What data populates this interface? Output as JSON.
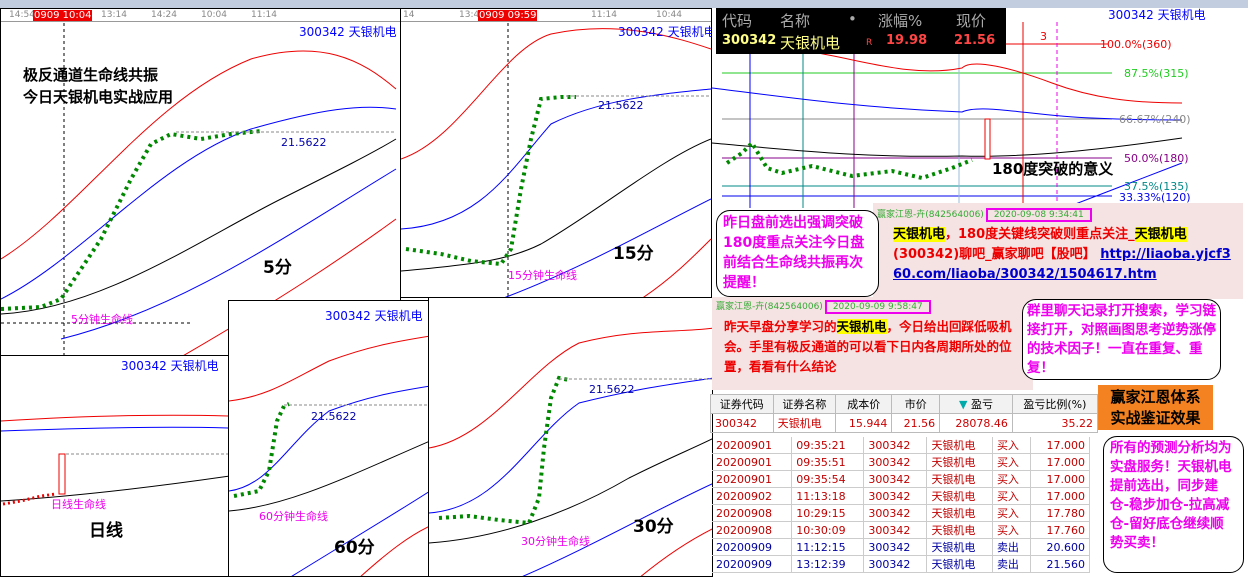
{
  "stock": {
    "code": "300342",
    "name": "天银机电",
    "label": "300342  天银机电"
  },
  "support_price": "21.5622",
  "panels": {
    "p5": {
      "period": "5分",
      "life_line": "5分钟生命线",
      "title_lines": [
        "极反通道生命线共振",
        "今日天银机电实战应用"
      ],
      "time_ticks": [
        "14:54",
        "13:14",
        "14:24",
        "10:04",
        "11:14"
      ],
      "cursor": "0909 10:04"
    },
    "p15": {
      "period": "15分",
      "life_line": "15分钟生命线",
      "time_ticks": [
        "14",
        "13:44",
        "11:14",
        "10:44"
      ],
      "cursor": "0909 09:59"
    },
    "pday": {
      "period": "日线",
      "life_line": "日线生命线"
    },
    "p60": {
      "period": "60分",
      "life_line": "60分钟生命线"
    },
    "p30": {
      "period": "30分",
      "life_line": "30分钟生命线"
    }
  },
  "quote": {
    "headers": [
      "代码",
      "名称",
      "•",
      "涨幅%",
      "现价"
    ],
    "code": "300342",
    "name": "天银机电",
    "flag": "R",
    "change_pct": "19.98",
    "price": "21.56"
  },
  "fib_levels": [
    {
      "label": "100.0%(360)",
      "color": "#e00000"
    },
    {
      "label": "87.5%(315)",
      "color": "#22cc22"
    },
    {
      "label": "66.67%(240)",
      "color": "#888888"
    },
    {
      "label": "50.0%(180)",
      "color": "#880088"
    },
    {
      "label": "37.5%(135)",
      "color": "#008888"
    },
    {
      "label": "33.33%(120)",
      "color": "#0000e0"
    }
  ],
  "vertical_marker": "3",
  "breakout_note": "180度突破的意义",
  "bubble1": "昨日盘前选出强调突破180度重点关注今日盘前结合生命线共振再次提醒！",
  "chat1": {
    "sender": "赢家江恩-卉(842564006)",
    "time": "2020-09-08 9:34:41",
    "hl1": "天银机电",
    "t1": "，180度关键线突破则重点关注_",
    "hl2": "天银机电",
    "t2": "(300342)聊吧_赢家聊吧【股吧】 ",
    "link": "http://liaoba.yjcf360.com/liaoba/300342/1504617.htm"
  },
  "chat2": {
    "sender": "赢家江恩-卉(842564006)",
    "time": "2020-09-09 9:58:47",
    "t1": "昨天早盘分享学习的",
    "hl": "天银机电",
    "t2": "，今日给出回踩低吸机会。手里有极反通道的可以看下日内各周期所处的位置，看看有什么结论"
  },
  "bubble2": "群里聊天记录打开搜索，学习链接打开，对照画图思考逆势涨停的技术因子！一直在重复、重复！",
  "orange_box": [
    "赢家江恩体系",
    "实战鉴证效果"
  ],
  "bubble3": "所有的预测分析均为实盘服务！天银机电提前选出，同步建仓-稳步加仓-拉高减仓-留好底仓继续顺势买卖！",
  "position": {
    "headers": [
      "证券代码",
      "证券名称",
      "成本价",
      "市价",
      "盈亏",
      "盈亏比例(%)"
    ],
    "row": [
      "300342",
      "天银机电",
      "15.944",
      "21.56",
      "28078.46",
      "35.22"
    ]
  },
  "trades": [
    [
      "20200901",
      "09:35:21",
      "300342",
      "天银机电",
      "买入",
      "17.000"
    ],
    [
      "20200901",
      "09:35:51",
      "300342",
      "天银机电",
      "买入",
      "17.000"
    ],
    [
      "20200901",
      "09:35:54",
      "300342",
      "天银机电",
      "买入",
      "17.000"
    ],
    [
      "20200902",
      "11:13:18",
      "300342",
      "天银机电",
      "买入",
      "17.000"
    ],
    [
      "20200908",
      "10:29:15",
      "300342",
      "天银机电",
      "买入",
      "17.780"
    ],
    [
      "20200908",
      "10:30:09",
      "300342",
      "天银机电",
      "买入",
      "17.760"
    ],
    [
      "20200909",
      "11:12:15",
      "300342",
      "天银机电",
      "卖出",
      "20.600"
    ],
    [
      "20200909",
      "13:12:39",
      "300342",
      "天银机电",
      "卖出",
      "21.560"
    ]
  ],
  "colors": {
    "buy": "#c00000",
    "sell": "#0000a0",
    "accent": "#ee00ee"
  }
}
